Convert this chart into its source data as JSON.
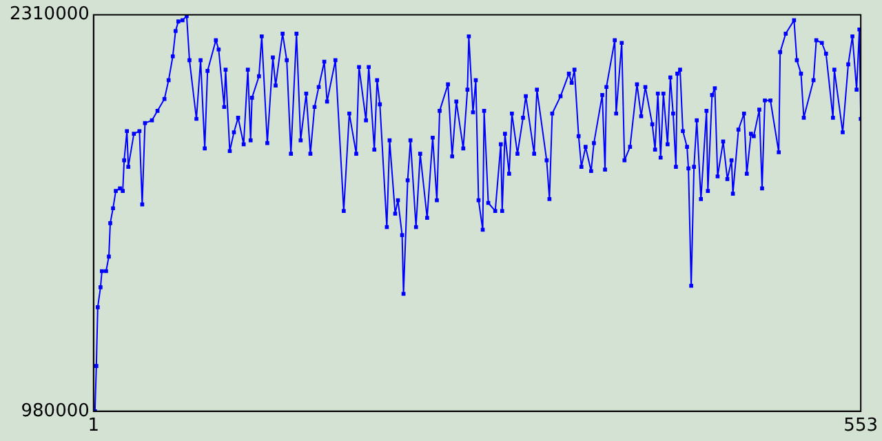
{
  "chart_data": {
    "type": "line",
    "marker": "square",
    "line_style": "solid",
    "grid": false,
    "legend": false,
    "xlim": [
      1,
      553
    ],
    "xticks": [
      1,
      553
    ],
    "ylim": [
      980000,
      2310000
    ],
    "yticks": [
      980000,
      2310000
    ],
    "series": [
      {
        "color": "#0000ff",
        "x": [
          2,
          3,
          4,
          6,
          7,
          10,
          12,
          13,
          15,
          17,
          20,
          22,
          23,
          25,
          26,
          30,
          34,
          36,
          38,
          43,
          47,
          52,
          55,
          58,
          60,
          62,
          65,
          68,
          70,
          75,
          78,
          81,
          83,
          89,
          91,
          95,
          96,
          99,
          102,
          105,
          109,
          112,
          114,
          115,
          120,
          122,
          126,
          130,
          132,
          137,
          140,
          143,
          147,
          150,
          154,
          157,
          160,
          163,
          167,
          169,
          175,
          181,
          185,
          190,
          192,
          197,
          199,
          203,
          205,
          207,
          212,
          214,
          218,
          220,
          223,
          224,
          227,
          229,
          233,
          236,
          241,
          245,
          248,
          250,
          256,
          259,
          262,
          267,
          270,
          271,
          274,
          276,
          278,
          281,
          282,
          285,
          290,
          294,
          295,
          297,
          300,
          302,
          306,
          310,
          312,
          318,
          320,
          327,
          329,
          331,
          337,
          343,
          345,
          347,
          350,
          352,
          355,
          359,
          361,
          367,
          369,
          370,
          376,
          377,
          381,
          383,
          387,
          392,
          395,
          398,
          403,
          405,
          407,
          409,
          411,
          414,
          416,
          418,
          420,
          421,
          423,
          425,
          428,
          429,
          431,
          433,
          435,
          438,
          442,
          443,
          446,
          448,
          450,
          454,
          457,
          460,
          461,
          465,
          469,
          471,
          474,
          476,
          480,
          482,
          484,
          488,
          494,
          495,
          499,
          505,
          507,
          510,
          512,
          519,
          521,
          525,
          528,
          533,
          534,
          540,
          544,
          547,
          550,
          552,
          553
        ],
        "values": [
          980000,
          1132000,
          1329000,
          1396000,
          1450000,
          1450000,
          1499000,
          1611000,
          1661000,
          1719000,
          1728000,
          1719000,
          1822000,
          1920000,
          1800000,
          1911000,
          1920000,
          1674000,
          1947000,
          1956000,
          1988000,
          2028000,
          2091000,
          2171000,
          2256000,
          2288000,
          2292000,
          2306000,
          2158000,
          1961000,
          2158000,
          1862000,
          2122000,
          2225000,
          2194000,
          2001000,
          2126000,
          1853000,
          1916000,
          1965000,
          1876000,
          2126000,
          1889000,
          2032000,
          2104000,
          2238000,
          1880000,
          2167000,
          2073000,
          2247000,
          2158000,
          1844000,
          2247000,
          1889000,
          2046000,
          1844000,
          2001000,
          2068000,
          2153000,
          2019000,
          2158000,
          1652000,
          1979000,
          1844000,
          2135000,
          1956000,
          2135000,
          1858000,
          2091000,
          2010000,
          1598000,
          1889000,
          1643000,
          1688000,
          1571000,
          1374000,
          1755000,
          1889000,
          1598000,
          1844000,
          1629000,
          1898000,
          1688000,
          1988000,
          2077000,
          1835000,
          2019000,
          1862000,
          2059000,
          2238000,
          1983000,
          2091000,
          1688000,
          1589000,
          1988000,
          1679000,
          1652000,
          1876000,
          1652000,
          1911000,
          1777000,
          1979000,
          1844000,
          1965000,
          2037000,
          1844000,
          2059000,
          1822000,
          1692000,
          1979000,
          2037000,
          2113000,
          2082000,
          2126000,
          1903000,
          1800000,
          1867000,
          1786000,
          1880000,
          2041000,
          1791000,
          2068000,
          2225000,
          1979000,
          2216000,
          1822000,
          1867000,
          2077000,
          1970000,
          2068000,
          1943000,
          1858000,
          2046000,
          1831000,
          2046000,
          1876000,
          2100000,
          1979000,
          1800000,
          2113000,
          2126000,
          1920000,
          1867000,
          1795000,
          1401000,
          1800000,
          1956000,
          1692000,
          1988000,
          1719000,
          2041000,
          2064000,
          1768000,
          1885000,
          1759000,
          1822000,
          1710000,
          1925000,
          1979000,
          1777000,
          1911000,
          1903000,
          1992000,
          1728000,
          2023000,
          2023000,
          1849000,
          2185000,
          2247000,
          2292000,
          2158000,
          2113000,
          1965000,
          2091000,
          2225000,
          2216000,
          2180000,
          1965000,
          2126000,
          1916000,
          2144000,
          2238000,
          2059000,
          2261000,
          1961000
        ]
      }
    ]
  }
}
